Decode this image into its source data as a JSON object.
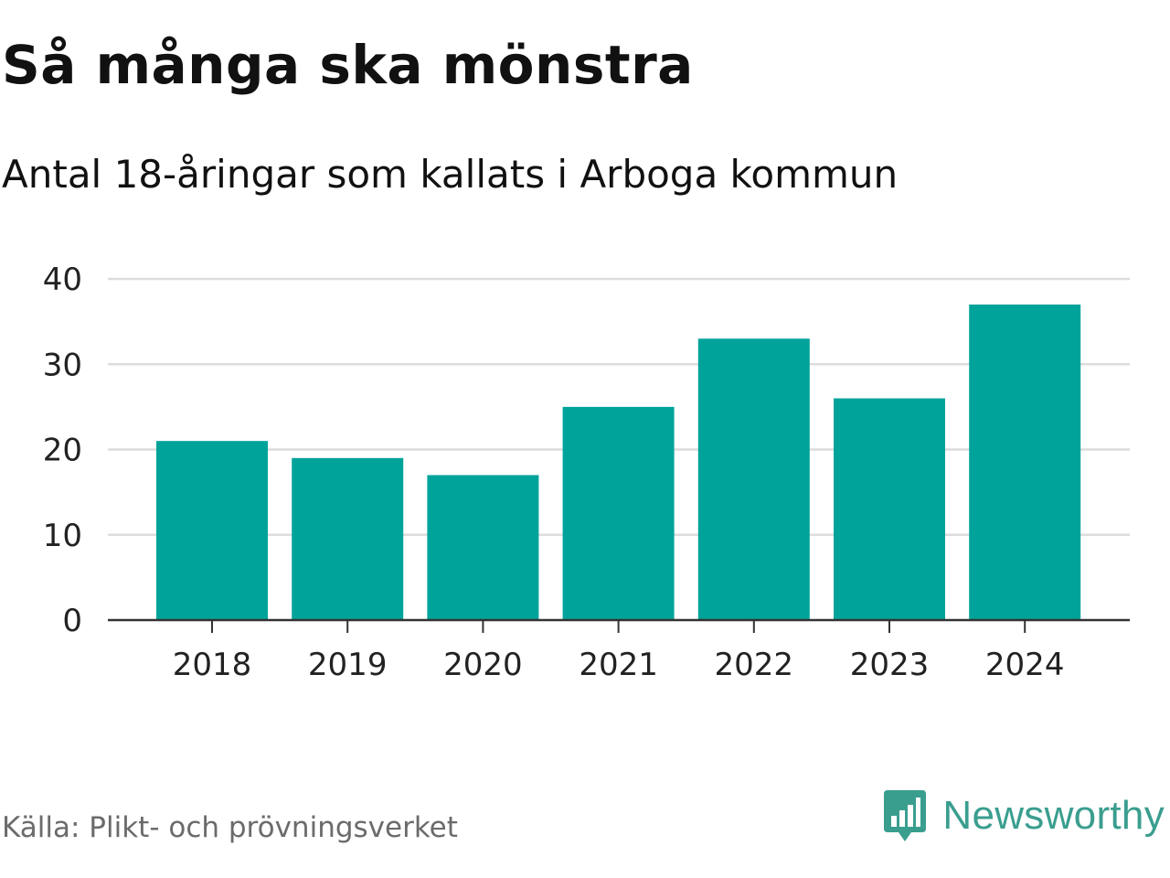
{
  "title": "Så många ska mönstra",
  "subtitle": "Antal 18-åringar som kallats i Arboga kommun",
  "source": "Källa: Plikt- och prövningsverket",
  "brand": {
    "name": "Newsworthy",
    "icon": "newsworthy-logo-icon",
    "color": "#3a9e8f"
  },
  "colors": {
    "bar": "#00a39a",
    "grid": "#dcdcdc",
    "axis": "#333333"
  },
  "chart_data": {
    "type": "bar",
    "title": "Så många ska mönstra",
    "subtitle": "Antal 18-åringar som kallats i Arboga kommun",
    "categories": [
      "2018",
      "2019",
      "2020",
      "2021",
      "2022",
      "2023",
      "2024"
    ],
    "values": [
      21,
      19,
      17,
      25,
      33,
      26,
      37
    ],
    "yticks": [
      "0",
      "10",
      "20",
      "30",
      "40"
    ],
    "ylim": [
      0,
      40
    ],
    "xlabel": "",
    "ylabel": "",
    "grid": true
  }
}
